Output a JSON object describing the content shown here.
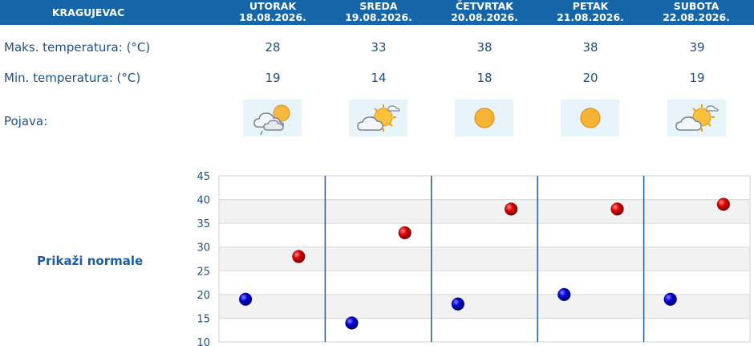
{
  "header": {
    "city": "KRAGUJEVAC"
  },
  "days": [
    {
      "name": "UTORAK",
      "date": "18.08.2026.",
      "max": "28",
      "min": "19",
      "icon": "cloudy-sun-rain-icon"
    },
    {
      "name": "SREDA",
      "date": "19.08.2026.",
      "max": "33",
      "min": "14",
      "icon": "partly-cloudy-sun-icon"
    },
    {
      "name": "ČETVRTAK",
      "date": "20.08.2026.",
      "max": "38",
      "min": "18",
      "icon": "sun-icon"
    },
    {
      "name": "PETAK",
      "date": "21.08.2026.",
      "max": "38",
      "min": "20",
      "icon": "sun-icon"
    },
    {
      "name": "SUBOTA",
      "date": "22.08.2026.",
      "max": "39",
      "min": "19",
      "icon": "partly-cloudy-sun-icon"
    }
  ],
  "labels": {
    "max": "Maks. temperatura: (°C)",
    "min": "Min. temperatura: (°C)",
    "pojava": "Pojava:"
  },
  "normals_link": "Prikaži normale",
  "colors": {
    "header": "#1565a9",
    "text": "#1d4f86",
    "max_point": "#cc0000",
    "min_point": "#0000bb"
  },
  "chart_data": {
    "type": "scatter",
    "categories": [
      "18.08.2026.",
      "19.08.2026.",
      "20.08.2026.",
      "21.08.2026.",
      "22.08.2026."
    ],
    "series": [
      {
        "values": [
          28,
          33,
          38,
          38,
          39
        ],
        "color": "#cc0000"
      },
      {
        "values": [
          19,
          14,
          18,
          20,
          19
        ],
        "color": "#0000bb"
      }
    ],
    "yticks": [
      "45",
      "40",
      "35",
      "30",
      "25",
      "20",
      "15",
      "10"
    ],
    "ylim": [
      10,
      45
    ],
    "grid": true
  }
}
